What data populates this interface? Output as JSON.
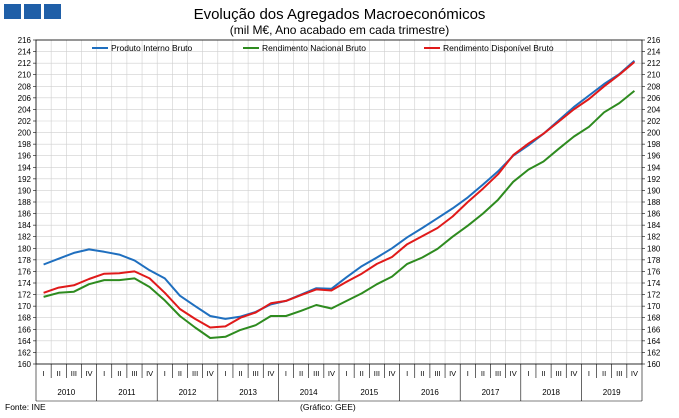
{
  "header": {
    "logo_color": "#1f5fa8"
  },
  "chart_data": {
    "type": "line",
    "title": "Evolução dos Agregados Macroeconómicos",
    "subtitle": "(mil M€, Ano acabado em cada trimestre)",
    "ylim": [
      160,
      216
    ],
    "yticks": [
      160,
      162,
      164,
      166,
      168,
      170,
      172,
      174,
      176,
      178,
      180,
      182,
      184,
      186,
      188,
      190,
      192,
      194,
      196,
      198,
      200,
      202,
      204,
      206,
      208,
      210,
      212,
      214,
      216
    ],
    "quarter_labels": [
      "I",
      "II",
      "III",
      "IV"
    ],
    "years": [
      "2010",
      "2011",
      "2012",
      "2013",
      "2014",
      "2015",
      "2016",
      "2017",
      "2018",
      "2019"
    ],
    "grid": true,
    "legend_position": "top",
    "series": [
      {
        "name": "Produto Interno Bruto",
        "color": "#1f6fbf",
        "values": [
          177.2,
          178.2,
          179.2,
          179.8,
          179.4,
          178.9,
          177.9,
          176.2,
          174.8,
          171.8,
          170.0,
          168.3,
          167.8,
          168.2,
          169.0,
          170.3,
          170.9,
          172.0,
          173.1,
          173.0,
          175.0,
          176.9,
          178.4,
          180.0,
          181.9,
          183.5,
          185.2,
          186.9,
          188.8,
          191.0,
          193.3,
          196.0,
          197.8,
          199.8,
          202.1,
          204.4,
          206.4,
          208.4,
          210.1,
          212.4
        ]
      },
      {
        "name": "Rendimento Nacional Bruto",
        "color": "#2e8b1f",
        "values": [
          171.6,
          172.3,
          172.5,
          173.8,
          174.5,
          174.5,
          174.8,
          173.3,
          171.0,
          168.3,
          166.3,
          164.5,
          164.7,
          165.9,
          166.7,
          168.3,
          168.3,
          169.2,
          170.2,
          169.6,
          170.9,
          172.2,
          173.8,
          175.1,
          177.3,
          178.4,
          179.9,
          182.0,
          183.9,
          186.0,
          188.4,
          191.5,
          193.6,
          195.0,
          197.2,
          199.3,
          201.0,
          203.5,
          205.1,
          207.2
        ]
      },
      {
        "name": "Rendimento Disponível Bruto",
        "color": "#e01a1a",
        "values": [
          172.3,
          173.2,
          173.6,
          174.7,
          175.6,
          175.7,
          176.0,
          174.8,
          172.3,
          169.5,
          167.8,
          166.3,
          166.5,
          168.0,
          168.9,
          170.5,
          170.9,
          171.9,
          172.9,
          172.7,
          174.2,
          175.6,
          177.3,
          178.5,
          180.7,
          182.1,
          183.5,
          185.5,
          188.0,
          190.3,
          192.8,
          196.1,
          198.1,
          199.8,
          201.9,
          204.0,
          205.8,
          208.0,
          210.0,
          212.2
        ]
      }
    ]
  },
  "footer": {
    "source": "Fonte: INE",
    "credit": "(Gráfico: GEE)"
  }
}
